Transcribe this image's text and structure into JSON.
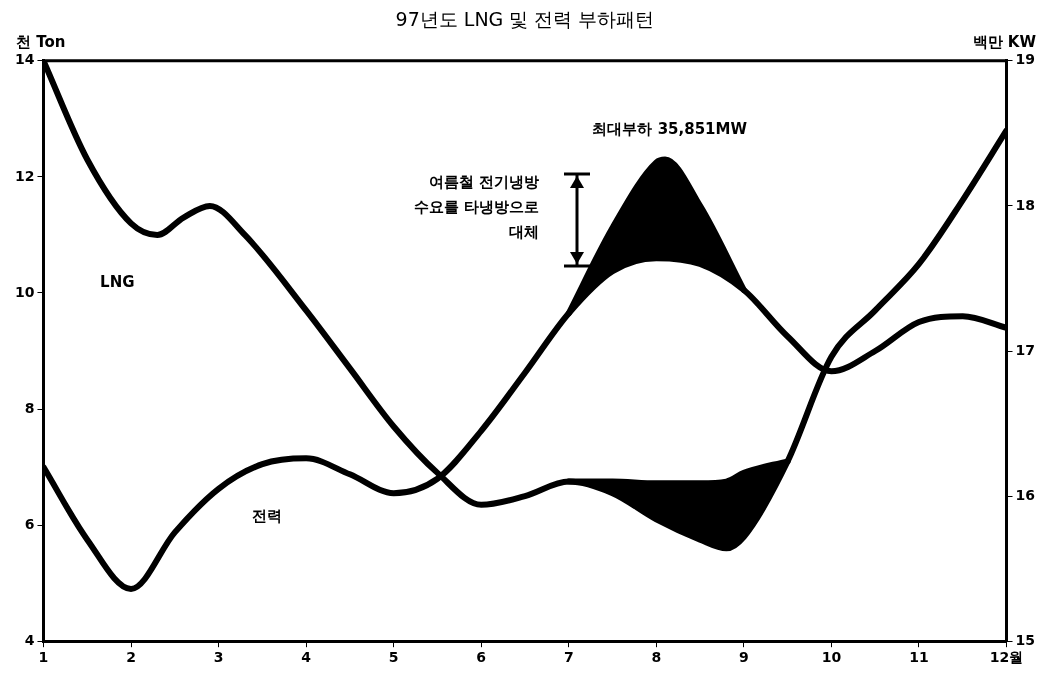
{
  "chart_data": {
    "type": "line",
    "title": "97년도 LNG 및 전력 부하패턴",
    "ylabel": "천 Ton",
    "y2label": "백만 KW",
    "xlim": [
      1,
      12
    ],
    "xticks": [
      1,
      2,
      3,
      4,
      5,
      6,
      7,
      8,
      9,
      10,
      11,
      {
        "value": 12,
        "label": "12월"
      }
    ],
    "ylim": [
      4,
      14
    ],
    "yticks": [
      4,
      6,
      8,
      10,
      12,
      14
    ],
    "y2lim": [
      15,
      19
    ],
    "y2ticks": [
      15,
      16,
      17,
      18,
      19
    ],
    "grid": false,
    "legend": false,
    "marker": "none",
    "line_style": "solid",
    "annotations": [
      "최대부하 35,851MW",
      "여름철 전기냉방\n수요를 타냉방으로\n대체"
    ],
    "series": [
      {
        "name": "LNG",
        "color": "#000000",
        "axis": "y",
        "x": [
          1,
          1.5,
          2,
          2.3,
          2.6,
          2.9,
          3.3,
          4,
          4.5,
          5,
          5.5,
          6,
          6.5,
          7,
          7.5,
          8,
          8.5,
          8.8,
          9,
          9.5,
          10,
          10.5,
          11,
          11.5,
          12
        ],
        "values": [
          14,
          12.3,
          11.2,
          11.0,
          11.3,
          11.5,
          11.0,
          9.7,
          8.7,
          7.7,
          6.9,
          6.35,
          6.5,
          6.75,
          6.55,
          6.1,
          5.75,
          5.6,
          5.8,
          7.1,
          8.9,
          9.7,
          10.5,
          11.6,
          12.8
        ]
      },
      {
        "type": "area",
        "color": "#000000",
        "axis": "y",
        "x": [
          7,
          7.5,
          8,
          8.5,
          8.8,
          9,
          9.5
        ],
        "values": [
          6.75,
          6.75,
          6.72,
          6.72,
          6.75,
          6.9,
          7.1
        ]
      },
      {
        "name": "전력",
        "color": "#000000",
        "axis": "y2",
        "x": [
          1,
          1.5,
          2,
          2.5,
          3,
          3.5,
          4,
          4.5,
          5,
          5.5,
          6,
          6.5,
          7,
          7.5,
          8,
          8.5,
          9,
          9.5,
          10,
          10.5,
          11,
          11.5,
          12
        ],
        "values": [
          16.2,
          15.7,
          15.36,
          15.75,
          16.05,
          16.22,
          16.26,
          16.15,
          16.02,
          16.12,
          16.45,
          16.85,
          17.26,
          17.55,
          17.64,
          17.6,
          17.42,
          17.1,
          16.86,
          17.0,
          17.2,
          17.24,
          17.16
        ]
      },
      {
        "type": "area",
        "color": "#000000",
        "axis": "y2",
        "x": [
          7,
          7.5,
          8,
          8.1,
          8.5,
          9
        ],
        "values": [
          17.26,
          17.85,
          18.3,
          18.32,
          18.0,
          17.42
        ]
      }
    ]
  }
}
